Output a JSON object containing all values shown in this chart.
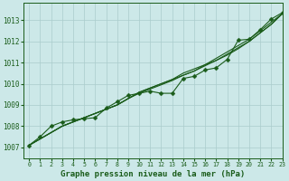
{
  "xlabel": "Graphe pression niveau de la mer (hPa)",
  "background_color": "#cce8e8",
  "grid_color": "#aacccc",
  "line_color": "#1a5c1a",
  "xlim": [
    -0.5,
    23
  ],
  "ylim": [
    1006.5,
    1013.8
  ],
  "yticks": [
    1007,
    1008,
    1009,
    1010,
    1011,
    1012,
    1013
  ],
  "xticks": [
    0,
    1,
    2,
    3,
    4,
    5,
    6,
    7,
    8,
    9,
    10,
    11,
    12,
    13,
    14,
    15,
    16,
    17,
    18,
    19,
    20,
    21,
    22,
    23
  ],
  "smooth_series": [
    [
      1007.1,
      1007.4,
      1007.7,
      1008.0,
      1008.2,
      1008.4,
      1008.6,
      1008.8,
      1009.0,
      1009.3,
      1009.6,
      1009.8,
      1010.0,
      1010.2,
      1010.5,
      1010.7,
      1010.9,
      1011.1,
      1011.4,
      1011.7,
      1012.0,
      1012.4,
      1012.8,
      1013.3
    ],
    [
      1007.1,
      1007.4,
      1007.7,
      1008.0,
      1008.2,
      1008.4,
      1008.6,
      1008.8,
      1009.0,
      1009.3,
      1009.6,
      1009.8,
      1010.0,
      1010.2,
      1010.4,
      1010.6,
      1010.9,
      1011.2,
      1011.5,
      1011.8,
      1012.1,
      1012.5,
      1012.9,
      1013.3
    ],
    [
      1007.1,
      1007.4,
      1007.7,
      1008.0,
      1008.2,
      1008.4,
      1008.6,
      1008.8,
      1009.0,
      1009.3,
      1009.55,
      1009.75,
      1009.95,
      1010.15,
      1010.4,
      1010.6,
      1010.85,
      1011.1,
      1011.35,
      1011.65,
      1012.0,
      1012.4,
      1012.8,
      1013.3
    ]
  ],
  "marker_series": [
    1007.1,
    1007.5,
    1008.0,
    1008.2,
    1008.3,
    1008.35,
    1008.4,
    1008.85,
    1009.15,
    1009.45,
    1009.55,
    1009.65,
    1009.55,
    1009.55,
    1010.25,
    1010.35,
    1010.65,
    1010.75,
    1011.15,
    1012.05,
    1012.1,
    1012.55,
    1013.05,
    1013.35
  ],
  "marker": "D",
  "marker_size": 2.5
}
